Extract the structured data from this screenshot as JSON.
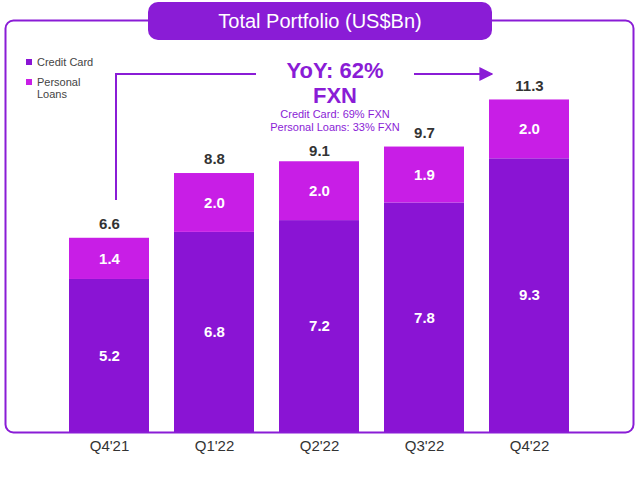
{
  "chart_data": {
    "type": "bar",
    "title": "Total Portfolio (US$Bn)",
    "categories": [
      "Q4'21",
      "Q1'22",
      "Q2'22",
      "Q3'22",
      "Q4'22"
    ],
    "series": [
      {
        "name": "Credit Card",
        "color": "#8a14d4",
        "values": [
          5.2,
          6.8,
          7.2,
          7.8,
          9.3
        ]
      },
      {
        "name": "Personal Loans",
        "color": "#c81ee6",
        "values": [
          1.4,
          2.0,
          2.0,
          1.9,
          2.0
        ],
        "value_labels": [
          "1.4",
          "2.0",
          "2.0",
          "1.9",
          "2.0"
        ]
      }
    ],
    "totals": [
      6.6,
      8.8,
      9.1,
      9.7,
      11.3
    ],
    "annotations": [
      "YoY: 62%",
      "FXN",
      "Credit Card: 69% FXN",
      "Personal Loans: 33% FXN"
    ],
    "ylim": [
      0,
      14
    ],
    "yticks": [],
    "stacked": true,
    "data_labels": true,
    "legend": "top-left",
    "tick_labels": "x",
    "grid": false
  }
}
